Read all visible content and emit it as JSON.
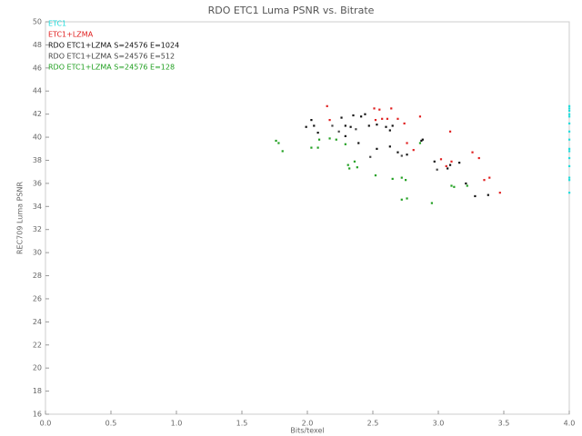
{
  "chart_data": {
    "type": "scatter",
    "title": "RDO ETC1 Luma PSNR vs. Bitrate",
    "x_label": "Bits/texel",
    "y_label": "REC709 Luma PSNR",
    "xlim": [
      0,
      4
    ],
    "ylim": [
      16,
      50
    ],
    "xticks": [
      {
        "value": 0,
        "label": "0.0"
      },
      0.5,
      {
        "value": 1,
        "label": "1.0"
      },
      1.5,
      {
        "value": 2,
        "label": "2.0"
      },
      2.5,
      {
        "value": 3,
        "label": "3.0"
      },
      3.5,
      {
        "value": 4,
        "label": "4.0"
      }
    ],
    "yticks": [
      16,
      18,
      20,
      22,
      24,
      26,
      28,
      30,
      32,
      34,
      36,
      38,
      40,
      42,
      44,
      46,
      48,
      50
    ],
    "legend": "top-left",
    "series": [
      {
        "name": "ETC1",
        "color": "#22dddd",
        "x": [
          4,
          4,
          4,
          4,
          4,
          4,
          4,
          4,
          4,
          4,
          4,
          4,
          4,
          4,
          4
        ],
        "values": [
          35.2,
          36.3,
          36.5,
          37.5,
          38.2,
          38.8,
          39.0,
          39.8,
          40.5,
          41.2,
          41.8,
          42.0,
          42.3,
          42.5,
          42.7
        ]
      },
      {
        "name": "ETC1+LZMA",
        "color": "#e02020",
        "x": [
          2.15,
          2.51,
          2.55,
          2.64,
          2.17,
          2.52,
          2.57,
          2.61,
          2.69,
          2.74,
          2.86,
          2.76,
          2.81,
          3.02,
          3.09,
          3.26,
          3.31,
          3.35,
          3.39,
          3.47,
          3.1,
          3.06
        ],
        "values": [
          42.7,
          42.5,
          42.4,
          42.5,
          41.5,
          41.5,
          41.6,
          41.6,
          41.6,
          41.2,
          41.8,
          39.5,
          38.9,
          38.1,
          40.5,
          38.7,
          38.2,
          36.3,
          36.5,
          35.2,
          37.9,
          37.5
        ]
      },
      {
        "name": "RDO ETC1+LZMA S=24576 E=1024",
        "color": "#111111",
        "x": [
          1.99,
          2.03,
          2.05,
          2.08,
          2.26,
          2.29,
          2.33,
          2.35,
          2.41,
          2.44,
          2.47,
          2.53,
          2.6,
          2.63,
          2.65,
          2.53,
          2.63,
          2.69,
          2.76,
          2.87,
          2.88,
          2.97,
          3.07,
          3.09,
          3.16,
          3.21,
          3.28,
          3.38,
          2.29,
          2.39
        ],
        "values": [
          40.9,
          41.5,
          41.0,
          40.4,
          41.7,
          41.0,
          40.9,
          41.9,
          41.8,
          42.0,
          41.0,
          41.1,
          40.9,
          40.6,
          41.0,
          39.0,
          39.2,
          38.7,
          38.5,
          39.7,
          39.8,
          37.9,
          37.3,
          37.6,
          37.8,
          36.0,
          34.9,
          35.0,
          40.1,
          39.5
        ]
      },
      {
        "name": "RDO ETC1+LZMA S=24576 E=512",
        "color": "#444444",
        "x": [
          2.19,
          2.24,
          2.37,
          2.48,
          2.72,
          2.99
        ],
        "values": [
          41.0,
          40.5,
          40.7,
          38.3,
          38.4,
          37.2
        ]
      },
      {
        "name": "RDO ETC1+LZMA S=24576 E=128",
        "color": "#22a022",
        "x": [
          1.76,
          1.78,
          1.81,
          2.03,
          2.08,
          2.09,
          2.17,
          2.22,
          2.29,
          2.31,
          2.32,
          2.36,
          2.38,
          2.52,
          2.65,
          2.72,
          2.75,
          2.72,
          2.76,
          2.95,
          3.1,
          3.12,
          3.22,
          2.86
        ],
        "values": [
          39.7,
          39.5,
          38.8,
          39.1,
          39.1,
          39.8,
          39.9,
          39.8,
          39.4,
          37.6,
          37.3,
          37.9,
          37.4,
          36.7,
          36.4,
          36.5,
          36.3,
          34.6,
          34.7,
          34.3,
          35.8,
          35.7,
          35.8,
          39.5
        ]
      }
    ]
  }
}
